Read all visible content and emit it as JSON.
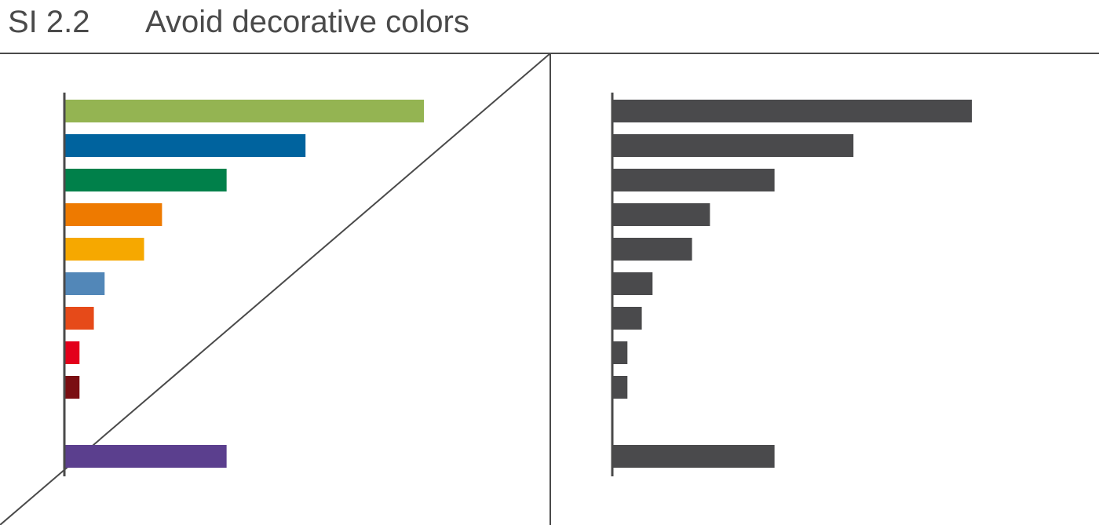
{
  "header": {
    "code": "SI 2.2",
    "title": "Avoid decorative colors"
  },
  "chart_data": [
    {
      "type": "bar",
      "orientation": "horizontal",
      "variant": "decorative-colors",
      "crossed_out": true,
      "title": "",
      "xlabel": "",
      "ylabel": "",
      "xlim": [
        0,
        100
      ],
      "categories": [
        "",
        "",
        "",
        "",
        "",
        "",
        "",
        "",
        "",
        "",
        ""
      ],
      "values": [
        100,
        67,
        45,
        27,
        22,
        11,
        8,
        4,
        4,
        null,
        45
      ],
      "colors": [
        "#94b452",
        "#00639e",
        "#00804a",
        "#ee7a00",
        "#f6a800",
        "#5287b8",
        "#e64a19",
        "#e3001b",
        "#7a0e12",
        null,
        "#5b3f8e"
      ]
    },
    {
      "type": "bar",
      "orientation": "horizontal",
      "variant": "single-color",
      "crossed_out": false,
      "title": "",
      "xlabel": "",
      "ylabel": "",
      "xlim": [
        0,
        100
      ],
      "categories": [
        "",
        "",
        "",
        "",
        "",
        "",
        "",
        "",
        "",
        "",
        ""
      ],
      "values": [
        100,
        67,
        45,
        27,
        22,
        11,
        8,
        4,
        4,
        null,
        45
      ],
      "colors": [
        "#4a4a4c"
      ]
    }
  ],
  "style": {
    "text_color": "#4a4a4a",
    "line_color": "#4a4a4a",
    "axis_color": "#4a4a4a"
  }
}
